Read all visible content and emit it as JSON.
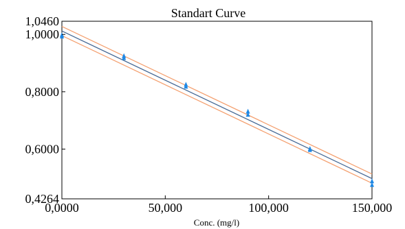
{
  "chart_data": {
    "type": "scatter",
    "title": "Standart Curve",
    "xlabel": "Conc. (mg/l)",
    "ylabel": "",
    "xlim": [
      0,
      150000
    ],
    "ylim": [
      0.4264,
      1.046
    ],
    "x_ticks": [
      0,
      50000,
      100000,
      150000
    ],
    "x_tick_labels": [
      "0,0000",
      "50,000",
      "100,000",
      "150,000"
    ],
    "y_ticks": [
      0.4264,
      0.6,
      0.8,
      1.0,
      1.046
    ],
    "y_tick_labels": [
      "0,4264",
      "0,6000",
      "0,8000",
      "1,0000",
      "1,0460"
    ],
    "grid": false,
    "series": [
      {
        "role": "points",
        "color": "#1e88e5",
        "points": [
          {
            "x": 0,
            "y": 0.998
          },
          {
            "x": 0,
            "y": 0.993
          },
          {
            "x": 30000,
            "y": 0.925
          },
          {
            "x": 30000,
            "y": 0.918
          },
          {
            "x": 60000,
            "y": 0.825
          },
          {
            "x": 60000,
            "y": 0.818
          },
          {
            "x": 90000,
            "y": 0.731
          },
          {
            "x": 90000,
            "y": 0.72
          },
          {
            "x": 120000,
            "y": 0.601
          },
          {
            "x": 120000,
            "y": 0.597
          },
          {
            "x": 150000,
            "y": 0.488
          },
          {
            "x": 150000,
            "y": 0.475
          }
        ]
      },
      {
        "role": "fit",
        "color": "#4a6b95",
        "x": [
          0,
          150000
        ],
        "y": [
          1.012,
          0.497
        ]
      },
      {
        "role": "upper-bound",
        "color": "#f4a070",
        "x": [
          0,
          150000
        ],
        "y": [
          1.028,
          0.513
        ]
      },
      {
        "role": "lower-bound",
        "color": "#f4a070",
        "x": [
          0,
          150000
        ],
        "y": [
          0.996,
          0.481
        ]
      }
    ]
  }
}
